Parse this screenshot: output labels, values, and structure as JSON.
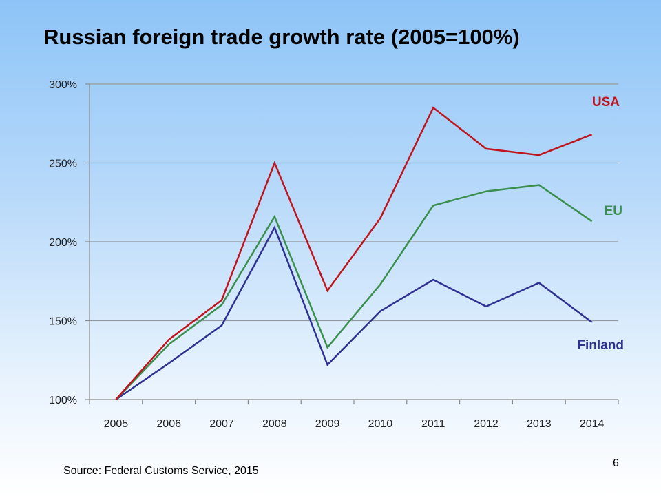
{
  "slide": {
    "title": "Russian foreign trade growth rate (2005=100%)",
    "source": "Source: Federal Customs Service, 2015",
    "page_number": "6"
  },
  "chart_data": {
    "type": "line",
    "title": "Russian foreign trade growth rate (2005=100%)",
    "xlabel": "",
    "ylabel": "",
    "x": [
      "2005",
      "2006",
      "2007",
      "2008",
      "2009",
      "2010",
      "2011",
      "2012",
      "2013",
      "2014"
    ],
    "ylim": [
      100,
      300
    ],
    "yticks": [
      100,
      150,
      200,
      250,
      300
    ],
    "ytick_labels": [
      "100%",
      "150%",
      "200%",
      "250%",
      "300%"
    ],
    "grid": "horizontal",
    "legend": "labels at right end of lines",
    "series": [
      {
        "name": "USA",
        "color": "#c0141c",
        "values": [
          100,
          138,
          163,
          250,
          169,
          215,
          285,
          259,
          255,
          268
        ]
      },
      {
        "name": "EU",
        "color": "#3a8f4e",
        "values": [
          100,
          135,
          160,
          216,
          133,
          173,
          223,
          232,
          236,
          213
        ]
      },
      {
        "name": "Finland",
        "color": "#2e3192",
        "values": [
          100,
          123,
          147,
          209,
          122,
          156,
          176,
          159,
          174,
          149
        ]
      }
    ]
  }
}
